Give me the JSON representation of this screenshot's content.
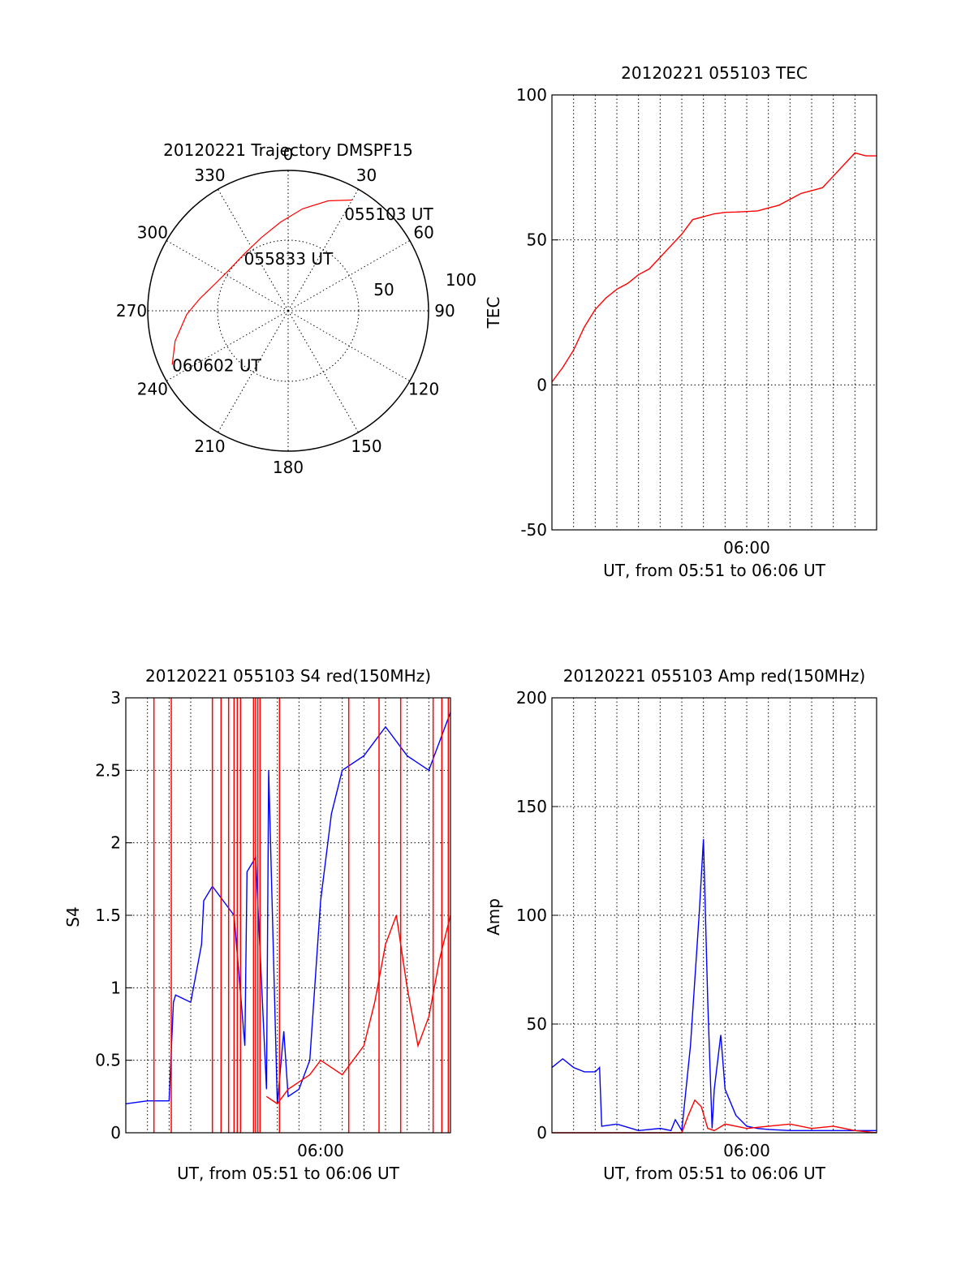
{
  "colors": {
    "red": "#ff0000",
    "blue": "#0000ff",
    "axis": "#000000",
    "background": "#ffffff"
  },
  "chart_data": [
    {
      "id": "trajectory",
      "type": "scatter",
      "title": "20120221 Trajectory DMSPF15",
      "projection": "polar (azimuth clockwise from north, elevation on radius)",
      "azimuth_labels": [
        "0",
        "30",
        "60",
        "90",
        "120",
        "150",
        "180",
        "210",
        "240",
        "270",
        "300",
        "330"
      ],
      "elevation_labels": [
        "50",
        "100"
      ],
      "track_labels": [
        {
          "text": "055103 UT",
          "az": 30,
          "el": 18
        },
        {
          "text": "055833 UT",
          "az": 320,
          "el": 46
        },
        {
          "text": "060602 UT",
          "az": 245,
          "el": 8
        }
      ],
      "series": [
        {
          "color": "red",
          "az": [
            30,
            20,
            8,
            355,
            340,
            322,
            305,
            290,
            278,
            268,
            255,
            245
          ],
          "el": [
            8,
            15,
            24,
            33,
            40,
            44,
            44,
            40,
            33,
            25,
            15,
            8
          ]
        }
      ]
    },
    {
      "id": "tec",
      "type": "line",
      "title": "20120221 055103 TEC",
      "xlabel": "UT, from 05:51 to 06:06 UT",
      "ylabel": "TEC",
      "ylim": [
        -50,
        100
      ],
      "xlim": [
        0,
        15.0
      ],
      "yticks": [
        "100",
        "50",
        "0",
        "-50"
      ],
      "xtick_labels": [
        {
          "value": 9,
          "text": "06:00"
        }
      ],
      "grid": true,
      "series": [
        {
          "color": "red",
          "x": [
            0,
            0.5,
            1.0,
            1.5,
            2.0,
            2.5,
            3.0,
            3.5,
            4.0,
            4.5,
            5.0,
            5.5,
            6.0,
            6.5,
            7.0,
            7.5,
            8.0,
            8.5,
            9.0,
            9.5,
            10.0,
            10.5,
            11.0,
            11.5,
            12.0,
            12.5,
            13.0,
            13.5,
            14.0,
            14.5,
            15.0
          ],
          "y": [
            1,
            6,
            12,
            20,
            26,
            30,
            33,
            35,
            38,
            40,
            44,
            48,
            52,
            57,
            58,
            59,
            59.5,
            59.6,
            59.8,
            60,
            61,
            62,
            64,
            66,
            67,
            68,
            72,
            76,
            80,
            79,
            79
          ]
        }
      ]
    },
    {
      "id": "s4",
      "type": "line",
      "title": "20120221 055103 S4 red(150MHz)",
      "xlabel": "UT, from 05:51 to 06:06 UT",
      "ylabel": "S4",
      "ylim": [
        0,
        3
      ],
      "xlim": [
        0,
        15.0
      ],
      "yticks": [
        "3",
        "2.5",
        "2",
        "1.5",
        "1",
        "0.5",
        "0"
      ],
      "xtick_labels": [
        {
          "value": 9,
          "text": "06:00"
        }
      ],
      "grid": true,
      "series": [
        {
          "color": "blue",
          "x": [
            0,
            1.0,
            2.0,
            2.2,
            2.3,
            3.0,
            3.5,
            3.6,
            4.0,
            4.5,
            5.0,
            5.5,
            5.6,
            6.0,
            6.5,
            6.6,
            7.0,
            7.3,
            7.5,
            8.0,
            8.5,
            9.0,
            9.5,
            10.0,
            11.0,
            12.0,
            13.0,
            14.0,
            15.0
          ],
          "y": [
            0.2,
            0.22,
            0.22,
            0.9,
            0.95,
            0.9,
            1.3,
            1.6,
            1.7,
            1.6,
            1.5,
            0.6,
            1.8,
            1.9,
            0.3,
            2.5,
            0.2,
            0.7,
            0.25,
            0.3,
            0.5,
            1.6,
            2.2,
            2.5,
            2.6,
            2.8,
            2.6,
            2.5,
            2.9
          ]
        },
        {
          "color": "red",
          "x": [
            6.5,
            7.0,
            7.5,
            8.0,
            8.5,
            9.0,
            9.5,
            10.0,
            10.5,
            11.0,
            11.5,
            12.0,
            12.5,
            13.0,
            13.5,
            14.0,
            14.5,
            15.0
          ],
          "y": [
            0.25,
            0.2,
            0.3,
            0.35,
            0.4,
            0.5,
            0.45,
            0.4,
            0.5,
            0.6,
            0.9,
            1.3,
            1.5,
            1.0,
            0.6,
            0.8,
            1.2,
            1.5
          ]
        }
      ],
      "red_spikes_x": [
        1.3,
        2.1,
        4.0,
        4.4,
        4.75,
        5.0,
        5.15,
        5.3,
        5.9,
        6.0,
        6.1,
        6.2,
        7.1,
        10.3,
        11.7,
        12.7,
        14.2,
        14.6,
        14.9
      ]
    },
    {
      "id": "amp",
      "type": "line",
      "title": "20120221 055103 Amp red(150MHz)",
      "xlabel": "UT, from 05:51 to 06:06 UT",
      "ylabel": "Amp",
      "ylim": [
        0,
        200
      ],
      "xlim": [
        0,
        15.0
      ],
      "yticks": [
        "200",
        "150",
        "100",
        "50",
        "0"
      ],
      "xtick_labels": [
        {
          "value": 9,
          "text": "06:00"
        }
      ],
      "grid": true,
      "series": [
        {
          "color": "blue",
          "x": [
            0,
            0.5,
            1.0,
            1.5,
            2.0,
            2.2,
            2.3,
            3.0,
            4.0,
            5.0,
            5.5,
            5.7,
            6.0,
            6.4,
            6.8,
            7.0,
            7.2,
            7.4,
            7.5,
            7.8,
            8.0,
            8.5,
            9.0,
            9.5,
            10.0,
            11.0,
            12.0,
            13.0,
            14.0,
            15.0
          ],
          "y": [
            30,
            34,
            30,
            28,
            28,
            30,
            3,
            4,
            1,
            2,
            1,
            6,
            1,
            40,
            100,
            135,
            60,
            2,
            20,
            45,
            20,
            8,
            3,
            2,
            1.5,
            1,
            1,
            1,
            1,
            1
          ]
        },
        {
          "color": "red",
          "x": [
            0,
            3.0,
            6.0,
            6.3,
            6.6,
            6.9,
            7.2,
            7.5,
            8.0,
            8.5,
            9.0,
            10.0,
            11.0,
            12.0,
            13.0,
            14.0,
            15.0
          ],
          "y": [
            0,
            0,
            0,
            8,
            15,
            12,
            2,
            1,
            4,
            3,
            2,
            3,
            4,
            2,
            3,
            1,
            0
          ]
        }
      ]
    }
  ]
}
